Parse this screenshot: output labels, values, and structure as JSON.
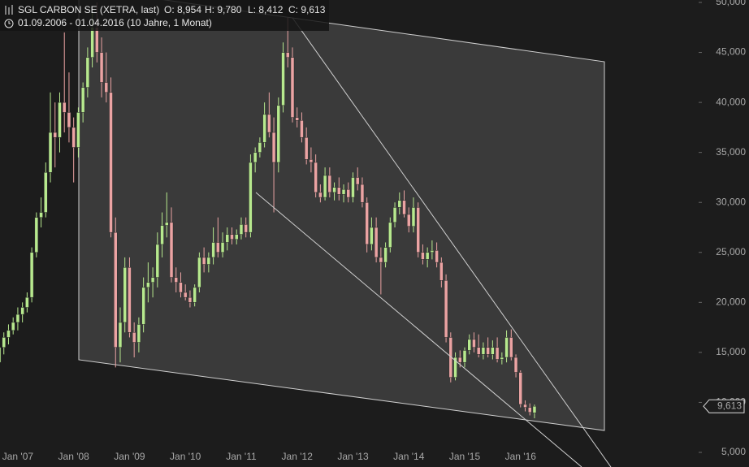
{
  "chart_data": {
    "type": "candlestick",
    "title": "SGL CARBON SE (XETRA, last)",
    "header_values": [
      "O: 8,954",
      "H: 9,780",
      "L: 8,412",
      "C: 9,613"
    ],
    "subtitle": "01.09.2006 - 01.04.2016 (10 Jahre, 1 Monat)",
    "up_color": "#b7e98e",
    "down_color": "#eba3a3",
    "last_label": "9,613",
    "ylim": [
      5000,
      50000
    ],
    "yticks": [
      {
        "value": 5000,
        "label": "5,000"
      },
      {
        "value": 10000,
        "label": "10,000"
      },
      {
        "value": 15000,
        "label": "15,000"
      },
      {
        "value": 20000,
        "label": "20,000"
      },
      {
        "value": 25000,
        "label": "25,000"
      },
      {
        "value": 30000,
        "label": "30,000"
      },
      {
        "value": 35000,
        "label": "35,000"
      },
      {
        "value": 40000,
        "label": "40,000"
      },
      {
        "value": 45000,
        "label": "45,000"
      },
      {
        "value": 50000,
        "label": "50,000"
      }
    ],
    "categories": [
      null,
      null,
      null,
      null,
      "Jan '07",
      null,
      null,
      null,
      null,
      null,
      null,
      null,
      null,
      null,
      null,
      null,
      "Jan '08",
      null,
      null,
      null,
      null,
      null,
      null,
      null,
      null,
      null,
      null,
      null,
      "Jan '09",
      null,
      null,
      null,
      null,
      null,
      null,
      null,
      null,
      null,
      null,
      null,
      "Jan '10",
      null,
      null,
      null,
      null,
      null,
      null,
      null,
      null,
      null,
      null,
      null,
      "Jan '11",
      null,
      null,
      null,
      null,
      null,
      null,
      null,
      null,
      null,
      null,
      null,
      "Jan '12",
      null,
      null,
      null,
      null,
      null,
      null,
      null,
      null,
      null,
      null,
      null,
      "Jan '13",
      null,
      null,
      null,
      null,
      null,
      null,
      null,
      null,
      null,
      null,
      null,
      "Jan '14",
      null,
      null,
      null,
      null,
      null,
      null,
      null,
      null,
      null,
      null,
      null,
      "Jan '15",
      null,
      null,
      null,
      null,
      null,
      null,
      null,
      null,
      null,
      null,
      null,
      "Jan '16",
      null,
      null,
      null
    ],
    "open": [
      14000,
      15500,
      16500,
      17200,
      18000,
      18800,
      19500,
      20500,
      25000,
      28500,
      29000,
      33000,
      37000,
      36500,
      40000,
      39000,
      37500,
      35500,
      39000,
      41500,
      44500,
      47500,
      45000,
      42000,
      41000,
      27000,
      15500,
      18000,
      23500,
      17000,
      16000,
      17800,
      21500,
      22000,
      22500,
      25800,
      27700,
      28000,
      22500,
      22000,
      21000,
      20500,
      20000,
      21500,
      24500,
      23800,
      24500,
      26000,
      25000,
      26000,
      26800,
      26300,
      26800,
      27800,
      27000,
      34000,
      35000,
      36000,
      38800,
      37000,
      34000,
      39700,
      45000,
      44500,
      38500,
      38200,
      36500,
      34300,
      34000,
      31000,
      30500,
      32700,
      31000,
      31500,
      30800,
      31300,
      30500,
      32500,
      31800,
      30000,
      25800,
      27500,
      24500,
      24000,
      25500,
      28000,
      29500,
      30200,
      28800,
      27600,
      29500,
      25000,
      24300,
      25000,
      25200,
      24000,
      22200,
      16500,
      12500,
      14500,
      14000,
      15200,
      16300,
      15500,
      14800,
      15500,
      14800,
      15500,
      14300,
      14500,
      16500,
      14500,
      13000,
      9800,
      9500,
      8954
    ],
    "high": [
      16000,
      17000,
      17800,
      18500,
      19500,
      20000,
      21000,
      25500,
      29000,
      30500,
      34000,
      41000,
      40000,
      41000,
      47000,
      43000,
      38500,
      39500,
      42000,
      45500,
      49500,
      50000,
      46500,
      45000,
      42500,
      28500,
      19500,
      24500,
      24500,
      18000,
      18500,
      22500,
      24000,
      23500,
      27000,
      29000,
      31000,
      29500,
      23500,
      23000,
      21800,
      21200,
      21800,
      25000,
      25500,
      25000,
      27500,
      28500,
      27000,
      27500,
      27500,
      27300,
      28500,
      28500,
      34800,
      35500,
      36500,
      40000,
      41000,
      38500,
      40500,
      46000,
      48500,
      45500,
      39500,
      39000,
      37500,
      35500,
      34800,
      31800,
      33500,
      33500,
      32000,
      32500,
      31800,
      32000,
      33000,
      33500,
      32500,
      30500,
      28500,
      28500,
      25500,
      26000,
      28500,
      30000,
      31000,
      31200,
      29500,
      30500,
      30000,
      25800,
      25500,
      26200,
      26000,
      24500,
      22800,
      17000,
      15000,
      15200,
      15500,
      16800,
      17000,
      16800,
      16000,
      16500,
      16200,
      16500,
      15000,
      17200,
      17300,
      14800,
      13200,
      10200,
      9900,
      9780
    ],
    "low": [
      13000,
      14800,
      15800,
      16800,
      17200,
      18000,
      19000,
      20000,
      24500,
      27500,
      28500,
      32000,
      33500,
      35000,
      37000,
      36000,
      32000,
      34500,
      38000,
      40500,
      43500,
      44000,
      40500,
      40000,
      26500,
      13500,
      14000,
      17000,
      16500,
      14500,
      15000,
      17000,
      20000,
      20500,
      21500,
      24500,
      26500,
      22000,
      21000,
      20500,
      20200,
      19500,
      19600,
      21000,
      23000,
      23000,
      23800,
      24500,
      24500,
      25200,
      25800,
      25800,
      26300,
      26500,
      26500,
      33000,
      34500,
      35500,
      36500,
      29000,
      33000,
      39000,
      43500,
      38000,
      37500,
      36000,
      33800,
      33000,
      30500,
      30000,
      30200,
      30500,
      30200,
      30200,
      30000,
      30000,
      30000,
      31200,
      29500,
      25000,
      25200,
      24000,
      20800,
      23500,
      25000,
      27500,
      28800,
      28500,
      27000,
      27000,
      24500,
      23800,
      23500,
      24300,
      23500,
      21500,
      16000,
      12000,
      12200,
      13500,
      13500,
      14800,
      15000,
      14500,
      14300,
      14500,
      14300,
      14000,
      13800,
      14000,
      14200,
      12500,
      9500,
      9100,
      8700,
      8412
    ],
    "close": [
      15500,
      16500,
      17200,
      18000,
      18800,
      19500,
      20500,
      25000,
      28500,
      29000,
      33000,
      37000,
      36500,
      40000,
      39000,
      37500,
      35500,
      39000,
      41500,
      44500,
      47500,
      45000,
      42000,
      41000,
      27000,
      15500,
      18000,
      23500,
      17000,
      16000,
      17800,
      21500,
      22000,
      22500,
      25800,
      27700,
      28000,
      22500,
      22000,
      21000,
      20500,
      20000,
      21500,
      24500,
      23800,
      24500,
      26000,
      25000,
      26000,
      26800,
      26300,
      26800,
      27800,
      27000,
      34000,
      35000,
      36000,
      38800,
      37000,
      34000,
      39700,
      45000,
      44500,
      38500,
      38200,
      36500,
      34300,
      34000,
      31000,
      30500,
      32700,
      31000,
      31500,
      30800,
      31300,
      30500,
      32500,
      31800,
      30000,
      25800,
      27500,
      24500,
      24000,
      25500,
      28000,
      29500,
      30200,
      28800,
      27600,
      29500,
      25000,
      24300,
      25000,
      25200,
      24000,
      22200,
      16500,
      12500,
      14500,
      14000,
      15200,
      16300,
      15500,
      14800,
      15500,
      14800,
      15500,
      14300,
      14500,
      16500,
      14500,
      13000,
      9800,
      9500,
      9000,
      9613
    ]
  }
}
